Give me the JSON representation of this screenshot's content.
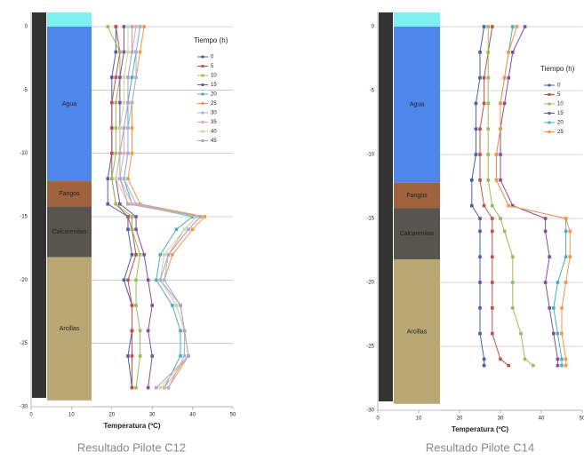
{
  "chart_data": [
    {
      "type": "line",
      "caption": "Resultado Pilote C12",
      "xlabel": "Temperatura (ºC)",
      "legend_title": "Tiempo (h)",
      "xlim": [
        0,
        50
      ],
      "xticks": [
        0,
        10,
        20,
        30,
        40,
        50
      ],
      "ylim": [
        -30,
        0
      ],
      "yticks": [
        0,
        -5,
        -10,
        -15,
        -20,
        -25,
        -30
      ],
      "grid": true,
      "layers": [
        {
          "name": "Agua",
          "top": 0,
          "bottom": -12.2,
          "color": "#4f86ec"
        },
        {
          "name": "Fangos",
          "top": -12.2,
          "bottom": -14.2,
          "color": "#a0633e"
        },
        {
          "name": "Calcarenitas",
          "top": -14.2,
          "bottom": -18.2,
          "color": "#585450"
        },
        {
          "name": "Arcillas",
          "top": -18.2,
          "bottom": -29.5,
          "color": "#b9a873"
        }
      ],
      "y": [
        0,
        -2,
        -4,
        -6,
        -8,
        -10,
        -12,
        -14,
        -15,
        -16,
        -18,
        -20,
        -22,
        -24,
        -26,
        -28.5
      ],
      "series": [
        {
          "name": "0",
          "color": "#4a5fa8",
          "values": [
            21,
            21,
            20,
            20,
            20,
            20,
            19,
            19,
            24,
            24,
            25,
            23,
            25,
            25,
            24,
            25
          ]
        },
        {
          "name": "5",
          "color": "#c0504d",
          "values": [
            21,
            22,
            21,
            20,
            20,
            20,
            20,
            21,
            24,
            25,
            26,
            24,
            25,
            25,
            25,
            25
          ]
        },
        {
          "name": "10",
          "color": "#9bbb59",
          "values": [
            19,
            22,
            22,
            21,
            21,
            21,
            20,
            21,
            25,
            25,
            27,
            26,
            26,
            27,
            27,
            26
          ]
        },
        {
          "name": "15",
          "color": "#7f4f9f",
          "values": [
            23,
            23,
            22,
            22,
            22,
            22,
            21,
            22,
            26,
            26,
            28,
            29,
            30,
            29,
            30,
            29
          ]
        },
        {
          "name": "20",
          "color": "#4bacc6",
          "values": [
            27,
            26,
            25,
            24,
            24,
            24,
            23,
            25,
            40,
            36,
            32,
            31,
            35,
            37,
            37,
            33
          ]
        },
        {
          "name": "25",
          "color": "#f79646",
          "values": [
            28,
            27,
            26,
            25,
            25,
            25,
            24,
            27,
            43,
            40,
            35,
            33,
            37,
            38,
            39,
            34
          ]
        },
        {
          "name": "30",
          "color": "#9ab8e0",
          "values": [
            27,
            26,
            26,
            25,
            24,
            24,
            23,
            26,
            42,
            39,
            34,
            33,
            37,
            38,
            38,
            34
          ]
        },
        {
          "name": "35",
          "color": "#f2a7a0",
          "values": [
            26,
            25,
            24,
            24,
            23,
            23,
            22,
            25,
            41,
            38,
            34,
            32,
            36,
            38,
            39,
            33
          ]
        },
        {
          "name": "40",
          "color": "#c7d9a0",
          "values": [
            24,
            24,
            23,
            23,
            22,
            22,
            21,
            24,
            41,
            38,
            33,
            32,
            36,
            38,
            39,
            32
          ]
        },
        {
          "name": "45",
          "color": "#b3a2c7",
          "values": [
            25,
            25,
            24,
            24,
            23,
            22,
            22,
            24,
            42,
            39,
            34,
            32,
            37,
            38,
            39,
            31
          ]
        }
      ]
    },
    {
      "type": "line",
      "caption": "Resultado Pilote C14",
      "xlabel": "Temperatura (ºC)",
      "legend_title": "Tiempo (h)",
      "xlim": [
        0,
        50
      ],
      "xticks": [
        0,
        10,
        20,
        30,
        40,
        50
      ],
      "ylim": [
        -30,
        0
      ],
      "yticks": [
        0,
        -5,
        -10,
        -15,
        -20,
        -25,
        -30
      ],
      "grid": true,
      "layers": [
        {
          "name": "Agua",
          "top": 0,
          "bottom": -12.2,
          "color": "#4f86ec"
        },
        {
          "name": "Fangos",
          "top": -12.2,
          "bottom": -14.2,
          "color": "#a0633e"
        },
        {
          "name": "Calcarenitas",
          "top": -14.2,
          "bottom": -18.2,
          "color": "#585450"
        },
        {
          "name": "Arcillas",
          "top": -18.2,
          "bottom": -29.5,
          "color": "#b9a873"
        }
      ],
      "y": [
        0,
        -2,
        -4,
        -6,
        -8,
        -10,
        -12,
        -14,
        -15,
        -16,
        -18,
        -20,
        -22,
        -24,
        -26,
        -26.5
      ],
      "series": [
        {
          "name": "0",
          "color": "#4a5fa8",
          "values": [
            26,
            25,
            25,
            24,
            24,
            24,
            23,
            23,
            25,
            25,
            25,
            25,
            25,
            25,
            26,
            26
          ]
        },
        {
          "name": "5",
          "color": "#c0504d",
          "values": [
            28,
            27,
            26,
            26,
            25,
            25,
            25,
            26,
            28,
            28,
            28,
            28,
            28,
            28,
            30,
            32
          ]
        },
        {
          "name": "10",
          "color": "#9bbb59",
          "values": [
            27,
            27,
            27,
            27,
            27,
            27,
            27,
            28,
            30,
            31,
            33,
            33,
            33,
            35,
            36,
            38
          ]
        },
        {
          "name": "15",
          "color": "#7f4f9f",
          "values": [
            36,
            33,
            32,
            31,
            30,
            30,
            30,
            33,
            41,
            41,
            42,
            41,
            42,
            43,
            44,
            44
          ]
        },
        {
          "name": "20",
          "color": "#4bacc6",
          "values": [
            33,
            32,
            31,
            30,
            30,
            29,
            29,
            32,
            46,
            46,
            46,
            44,
            43,
            44,
            45,
            45
          ]
        },
        {
          "name": "25",
          "color": "#f79646",
          "values": [
            34,
            32,
            31,
            30,
            30,
            29,
            29,
            32,
            46,
            47,
            47,
            46,
            45,
            45,
            46,
            46
          ]
        }
      ]
    }
  ]
}
